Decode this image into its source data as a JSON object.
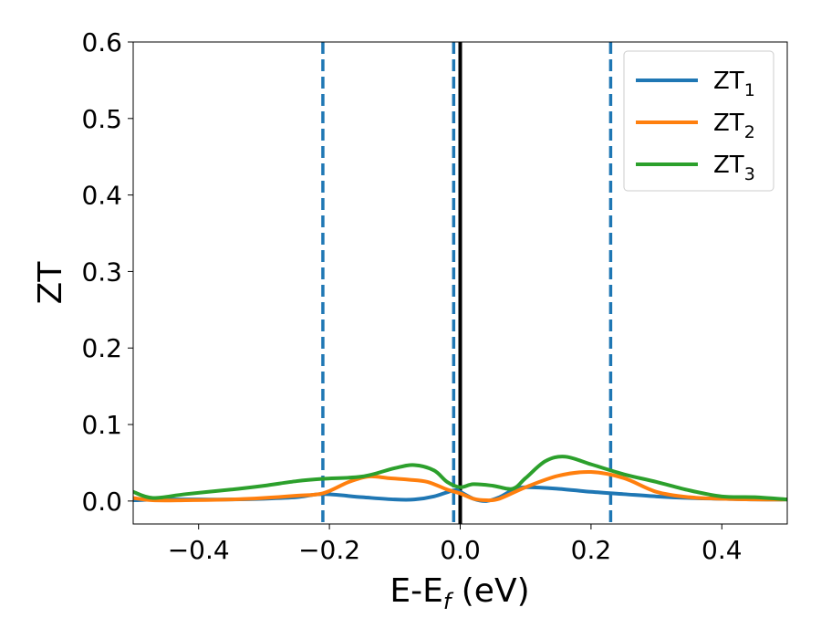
{
  "chart_data": {
    "type": "line",
    "title": "",
    "xlabel": "E-E",
    "xlabel_sub": "f",
    "xlabel_unit": " (eV)",
    "ylabel": "ZT",
    "xlim": [
      -0.5,
      0.5
    ],
    "ylim": [
      -0.03,
      0.6
    ],
    "xticks": [
      -0.4,
      -0.2,
      0.0,
      0.2,
      0.4
    ],
    "xtick_labels": [
      "−0.4",
      "−0.2",
      "0.0",
      "0.2",
      "0.4"
    ],
    "yticks": [
      0.0,
      0.1,
      0.2,
      0.3,
      0.4,
      0.5,
      0.6
    ],
    "ytick_labels": [
      "0.0",
      "0.1",
      "0.2",
      "0.3",
      "0.4",
      "0.5",
      "0.6"
    ],
    "legend_position": "top-right",
    "vlines_dashed": {
      "x": [
        -0.21,
        -0.01,
        0.23
      ],
      "color": "#1f77b4"
    },
    "vline_solid": {
      "x": 0.0,
      "color": "#000000"
    },
    "series": [
      {
        "name": "ZT",
        "name_sub": "1",
        "color": "#1f77b4",
        "x": [
          -0.5,
          -0.45,
          -0.4,
          -0.35,
          -0.3,
          -0.25,
          -0.21,
          -0.15,
          -0.1,
          -0.07,
          -0.04,
          -0.01,
          0.0,
          0.02,
          0.04,
          0.06,
          0.08,
          0.1,
          0.15,
          0.2,
          0.25,
          0.3,
          0.35,
          0.4,
          0.45,
          0.5
        ],
        "y": [
          0.001,
          0.002,
          0.002,
          0.002,
          0.003,
          0.005,
          0.009,
          0.005,
          0.002,
          0.002,
          0.006,
          0.014,
          0.012,
          0.003,
          0.0,
          0.005,
          0.014,
          0.018,
          0.016,
          0.012,
          0.009,
          0.006,
          0.004,
          0.003,
          0.002,
          0.002
        ]
      },
      {
        "name": "ZT",
        "name_sub": "2",
        "color": "#ff7f0e",
        "x": [
          -0.5,
          -0.47,
          -0.42,
          -0.35,
          -0.3,
          -0.25,
          -0.21,
          -0.17,
          -0.14,
          -0.11,
          -0.08,
          -0.05,
          -0.02,
          0.0,
          0.02,
          0.04,
          0.06,
          0.1,
          0.15,
          0.2,
          0.25,
          0.3,
          0.35,
          0.4,
          0.45,
          0.5
        ],
        "y": [
          0.004,
          0.001,
          0.001,
          0.002,
          0.004,
          0.007,
          0.01,
          0.025,
          0.032,
          0.03,
          0.028,
          0.025,
          0.015,
          0.01,
          0.003,
          0.001,
          0.003,
          0.018,
          0.033,
          0.038,
          0.03,
          0.012,
          0.005,
          0.003,
          0.002,
          0.002
        ]
      },
      {
        "name": "ZT",
        "name_sub": "3",
        "color": "#2ca02c",
        "x": [
          -0.5,
          -0.47,
          -0.42,
          -0.35,
          -0.3,
          -0.25,
          -0.21,
          -0.15,
          -0.1,
          -0.07,
          -0.04,
          -0.02,
          0.0,
          0.02,
          0.05,
          0.08,
          0.1,
          0.13,
          0.16,
          0.2,
          0.25,
          0.3,
          0.35,
          0.4,
          0.45,
          0.5
        ],
        "y": [
          0.012,
          0.004,
          0.009,
          0.015,
          0.02,
          0.026,
          0.029,
          0.032,
          0.043,
          0.047,
          0.04,
          0.025,
          0.018,
          0.022,
          0.02,
          0.016,
          0.03,
          0.052,
          0.058,
          0.048,
          0.035,
          0.025,
          0.014,
          0.006,
          0.005,
          0.002
        ]
      }
    ]
  }
}
